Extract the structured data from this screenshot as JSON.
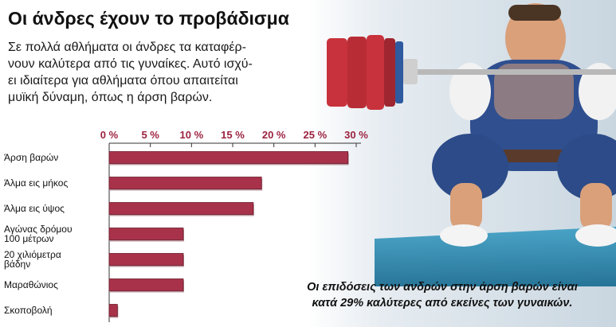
{
  "header": {
    "title": "Οι άνδρες έχουν το προβάδισμα",
    "intro_lines": [
      "Σε πολλά αθλήματα οι άνδρες τα καταφέρ-",
      "νουν καλύτερα από τις γυναίκες. Αυτό ισχύ-",
      "ει ιδιαίτερα για αθλήματα όπου απαιτείται",
      "μυϊκή δύναμη, όπως η άρση βαρών."
    ]
  },
  "caption": {
    "lines": [
      "Οι επιδόσεις των ανδρών στην άρση βαρών είναι",
      "κατά 29% καλύτερες από εκείνες των γυναικών."
    ]
  },
  "colors": {
    "bar": "#a8324a",
    "bar_dark": "#6b1b2b",
    "axis": "#333333",
    "tick_label": "#9c2240",
    "plate": "#c8323c",
    "sky": "#dbe3ea",
    "floor": "#1e7fa8"
  },
  "chart_data": {
    "type": "bar",
    "orientation": "horizontal",
    "categories": [
      [
        "Άρση βαρών"
      ],
      [
        "Άλμα εις μήκος"
      ],
      [
        "Άλμα εις ύψος"
      ],
      [
        "Αγώνας δρόμου",
        "100 μέτρων"
      ],
      [
        "20 χιλιόμετρα",
        "βάδην"
      ],
      [
        "Μαραθώνιος"
      ],
      [
        "Σκοποβολή"
      ]
    ],
    "values": [
      29,
      18.5,
      17.5,
      9,
      9,
      9,
      1
    ],
    "tick_labels": [
      "0 %",
      "5 %",
      "10 %",
      "15 %",
      "20 %",
      "25 %",
      "30 %"
    ],
    "xlim": [
      0,
      30
    ],
    "grid": false,
    "legend": "none"
  }
}
